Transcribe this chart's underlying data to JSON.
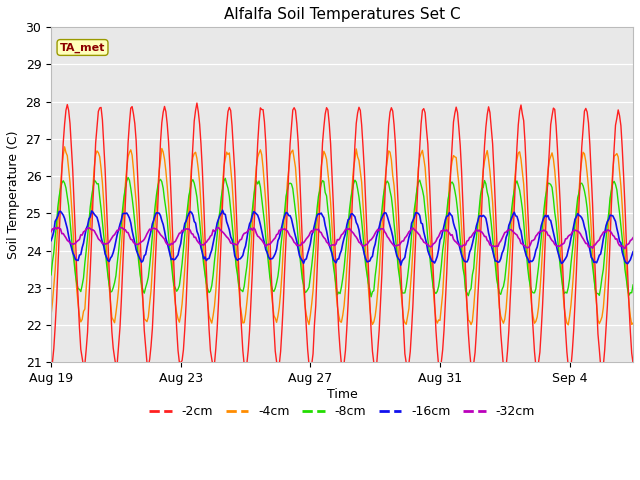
{
  "title": "Alfalfa Soil Temperatures Set C",
  "xlabel": "Time",
  "ylabel": "Soil Temperature (C)",
  "ylim": [
    21.0,
    30.0
  ],
  "yticks": [
    21.0,
    22.0,
    23.0,
    24.0,
    25.0,
    26.0,
    27.0,
    28.0,
    29.0,
    30.0
  ],
  "annotation_label": "TA_met",
  "outer_bg_color": "#ffffff",
  "plot_bg_color": "#e8e8e8",
  "colors": {
    "-2cm": "#ff2020",
    "-4cm": "#ff8c00",
    "-8cm": "#22dd00",
    "-16cm": "#1010ee",
    "-32cm": "#bb00bb"
  },
  "legend_labels": [
    "-2cm",
    "-4cm",
    "-8cm",
    "-16cm",
    "-32cm"
  ],
  "x_tick_labels": [
    "Aug 19",
    "Aug 23",
    "Aug 27",
    "Aug 31",
    "Sep 4"
  ],
  "x_tick_positions": [
    0,
    96,
    192,
    288,
    384
  ],
  "total_points": 432,
  "period_hours": 24,
  "amplitude_2cm": 3.5,
  "amplitude_4cm": 2.3,
  "amplitude_8cm": 1.5,
  "amplitude_16cm": 0.65,
  "amplitude_32cm": 0.22,
  "mean_temp": 24.4,
  "phase_shift_2cm": -6,
  "phase_shift_4cm": -4.5,
  "phase_shift_8cm": -3,
  "phase_shift_16cm": -1,
  "phase_shift_32cm": 2
}
